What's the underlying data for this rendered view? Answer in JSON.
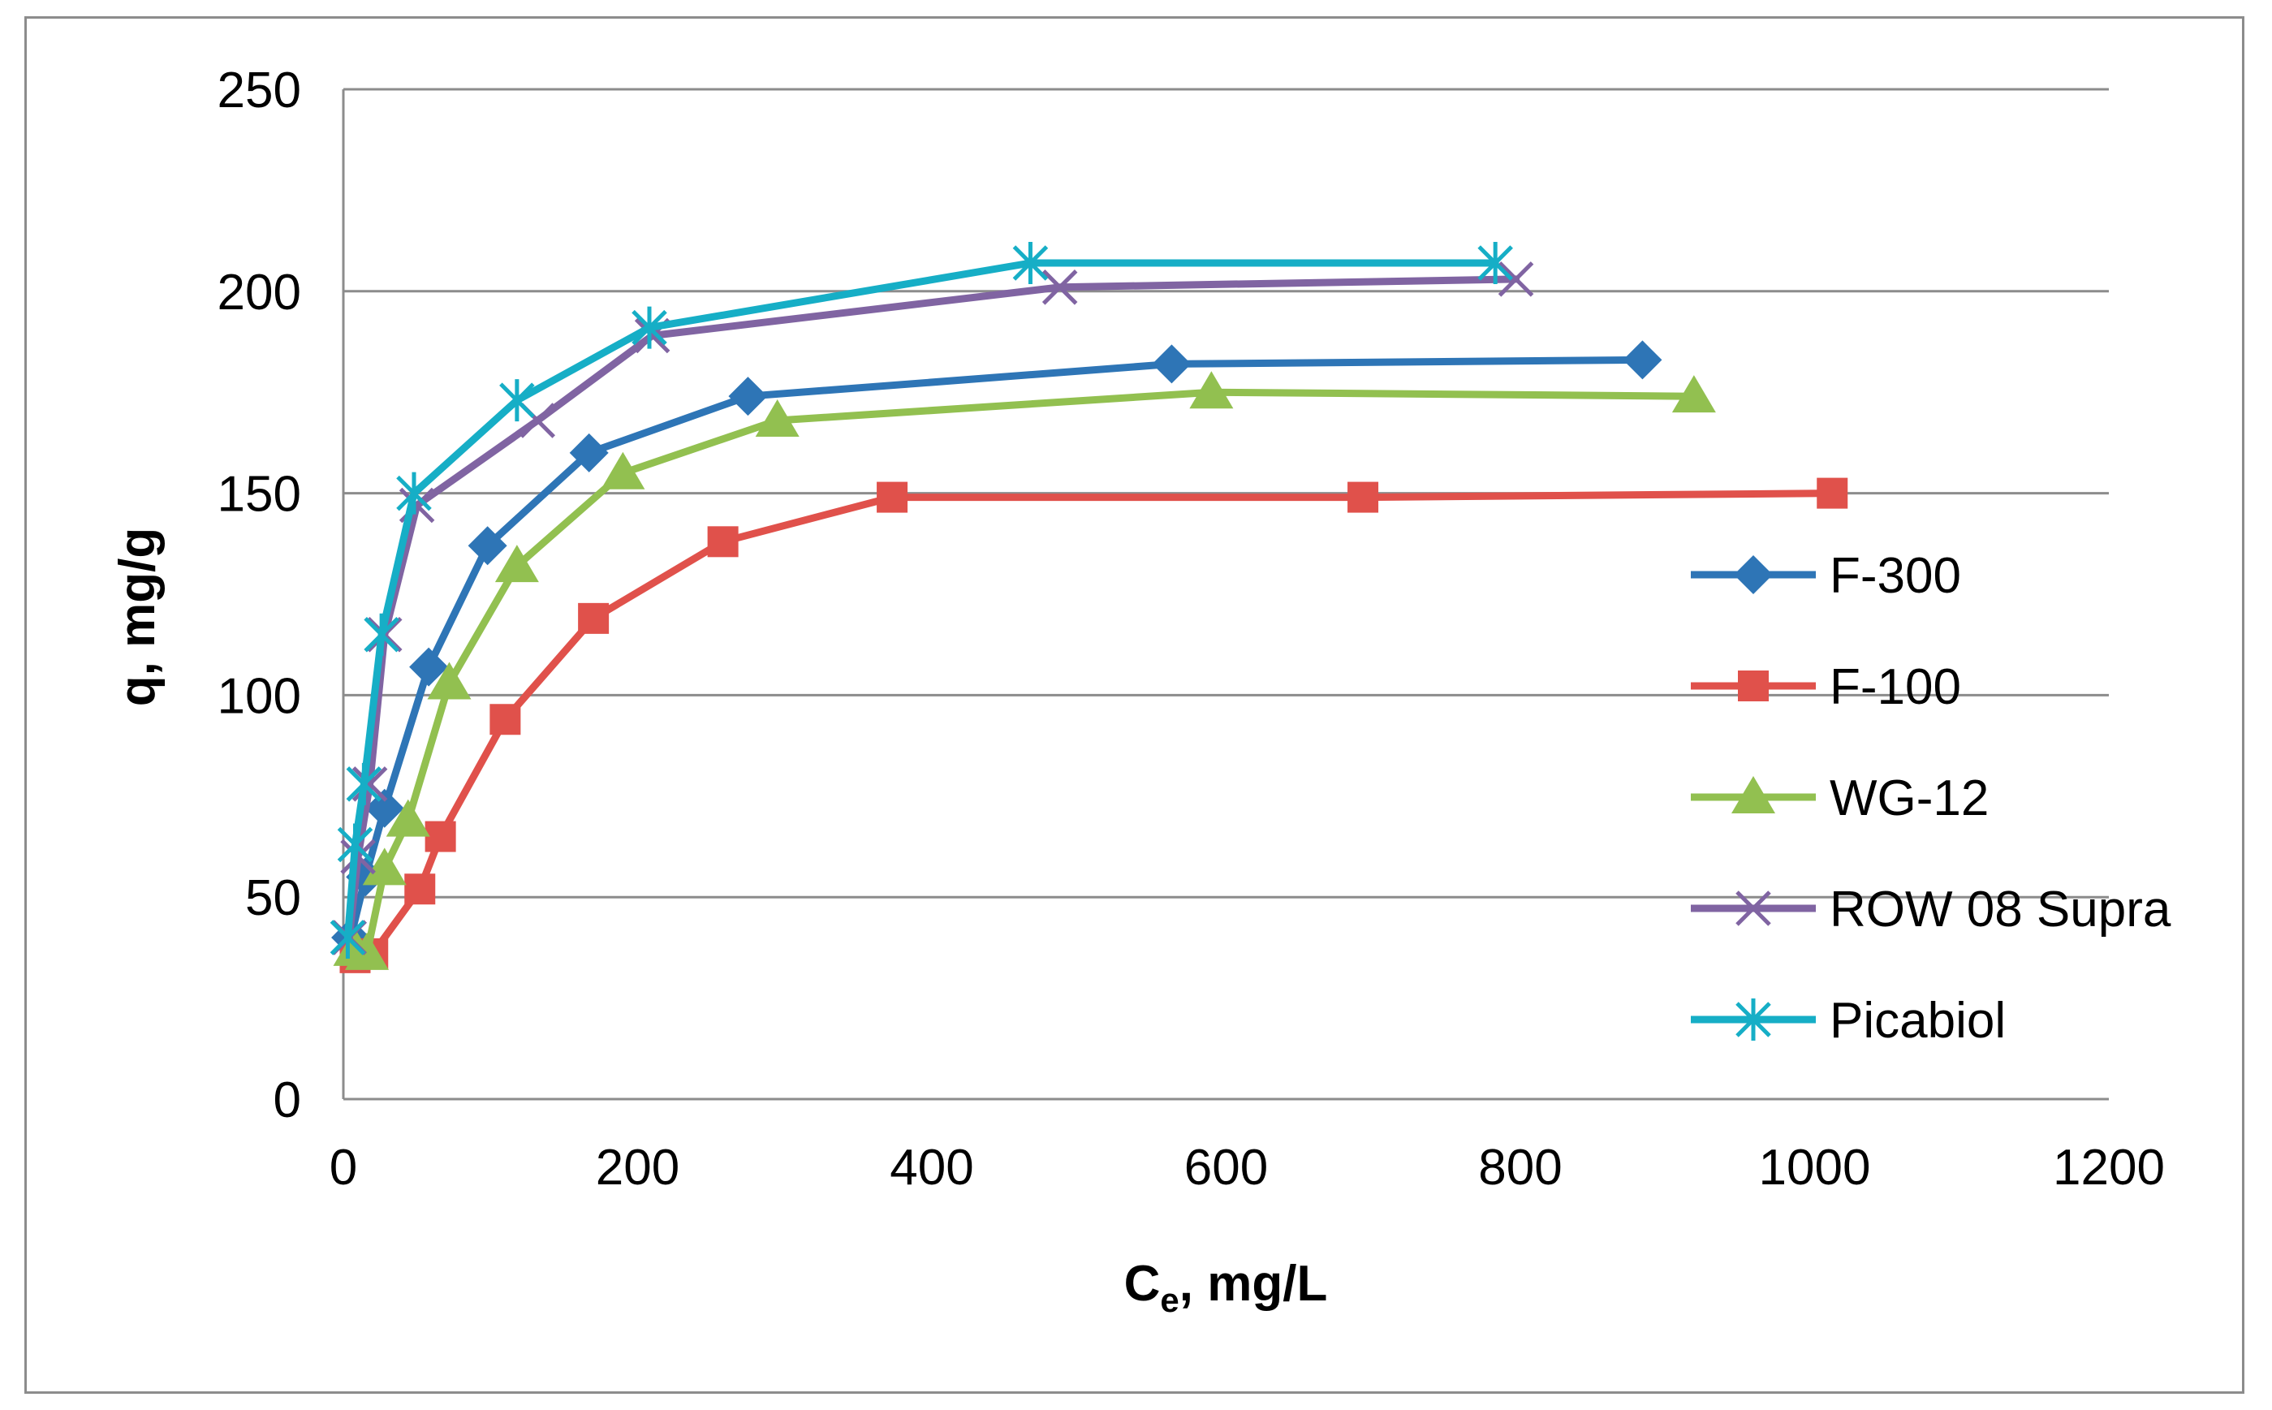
{
  "chart_data": {
    "type": "line",
    "title": "",
    "xlabel_main": "C",
    "xlabel_sub": "e",
    "xlabel_rest": ", mg/L",
    "ylabel": "q, mg/g",
    "xlim": [
      0,
      1200
    ],
    "ylim": [
      0,
      250
    ],
    "x_ticks": [
      0,
      200,
      400,
      600,
      800,
      1000,
      1200
    ],
    "y_ticks": [
      0,
      50,
      100,
      150,
      200,
      250
    ],
    "x_tick_labels": [
      "0",
      "200",
      "400",
      "600",
      "800",
      "1000",
      "1200"
    ],
    "y_tick_labels": [
      "0",
      "50",
      "100",
      "150",
      "200",
      "250"
    ],
    "grid": "horizontal",
    "legend_position": "right",
    "series": [
      {
        "name": "F-300",
        "color": "#2e75b6",
        "marker": "diamond",
        "x": [
          5,
          15,
          28,
          58,
          98,
          167,
          275,
          563,
          883
        ],
        "y": [
          40,
          55,
          72,
          107,
          137,
          160,
          174,
          182,
          183
        ]
      },
      {
        "name": "F-100",
        "color": "#e0514b",
        "marker": "square",
        "x": [
          8,
          20,
          52,
          66,
          110,
          170,
          258,
          373,
          693,
          1012
        ],
        "y": [
          35,
          36,
          52,
          65,
          94,
          119,
          138,
          149,
          149,
          150
        ]
      },
      {
        "name": "WG-12",
        "color": "#92c050",
        "marker": "triangle",
        "x": [
          8,
          16,
          28,
          44,
          72,
          118,
          190,
          295,
          590,
          918
        ],
        "y": [
          37,
          36,
          57,
          69,
          103,
          132,
          155,
          168,
          175,
          174
        ]
      },
      {
        "name": "ROW 08 Supra",
        "color": "#8064a2",
        "marker": "x",
        "x": [
          4,
          10,
          18,
          28,
          50,
          132,
          210,
          487,
          797
        ],
        "y": [
          40,
          60,
          78,
          115,
          147,
          168,
          189,
          201,
          203
        ]
      },
      {
        "name": "Picabiol",
        "color": "#16aec6",
        "marker": "asterisk",
        "x": [
          3,
          8,
          14,
          26,
          48,
          118,
          208,
          467,
          783
        ],
        "y": [
          40,
          63,
          78,
          115,
          150,
          173,
          191,
          207,
          207
        ]
      }
    ]
  }
}
